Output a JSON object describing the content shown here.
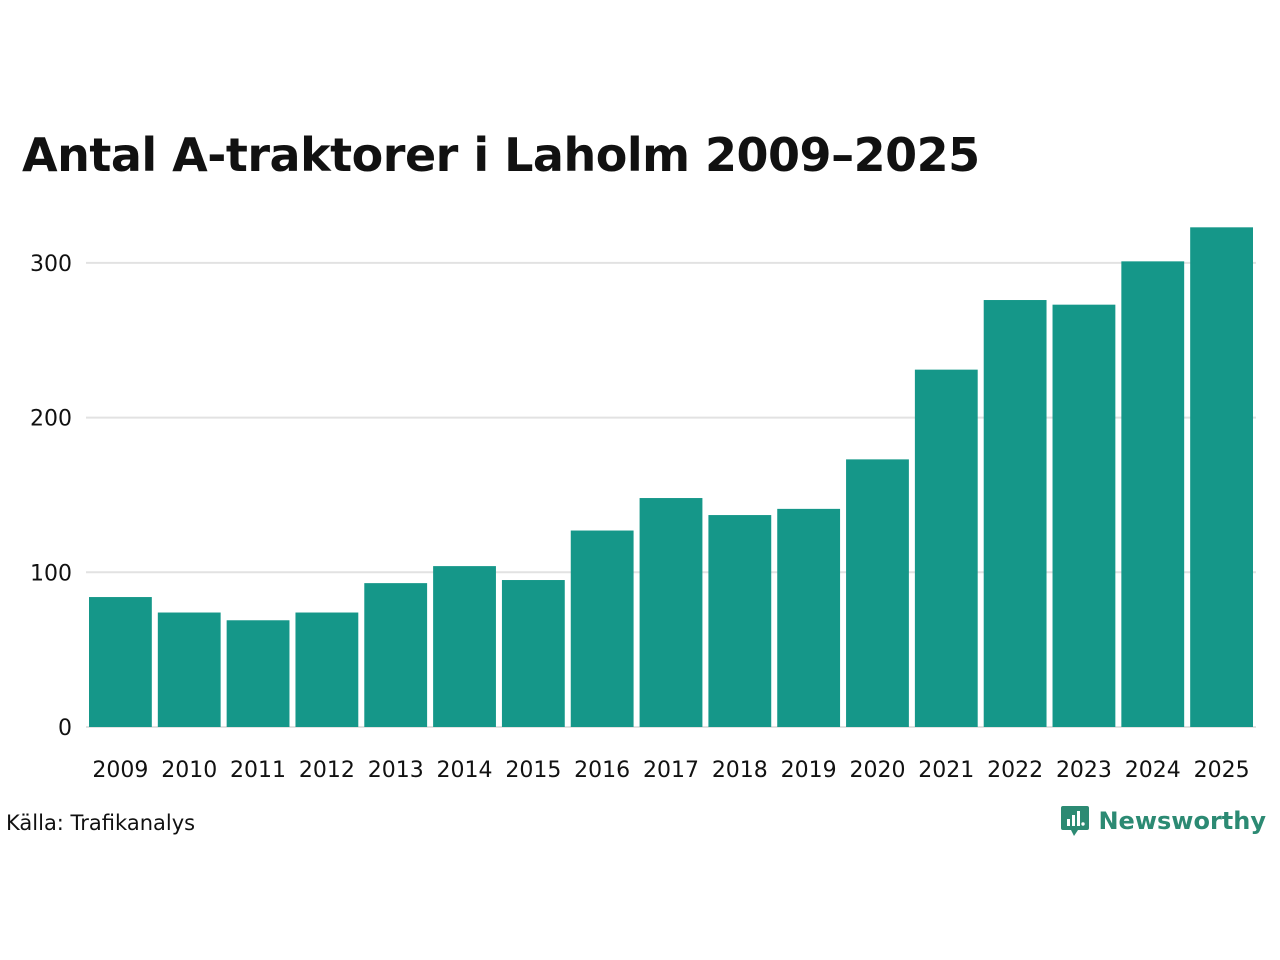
{
  "colors": {
    "bar": "#159789",
    "grid": "#e2e2e2",
    "text": "#111111",
    "brand": "#2c8a73"
  },
  "footer": {
    "source": "Källa: Trafikanalys",
    "brand_name": "Newsworthy",
    "brand_icon": "newsworthy-logo-icon"
  },
  "chart_data": {
    "type": "bar",
    "title": "Antal A-traktorer i Laholm 2009–2025",
    "xlabel": "",
    "ylabel": "",
    "ylim": [
      0,
      330
    ],
    "yticks": [
      0,
      100,
      200,
      300
    ],
    "grid": true,
    "categories": [
      "2009",
      "2010",
      "2011",
      "2012",
      "2013",
      "2014",
      "2015",
      "2016",
      "2017",
      "2018",
      "2019",
      "2020",
      "2021",
      "2022",
      "2023",
      "2024",
      "2025"
    ],
    "values": [
      84,
      74,
      69,
      74,
      93,
      104,
      95,
      127,
      148,
      137,
      141,
      173,
      231,
      276,
      273,
      301,
      323
    ]
  }
}
